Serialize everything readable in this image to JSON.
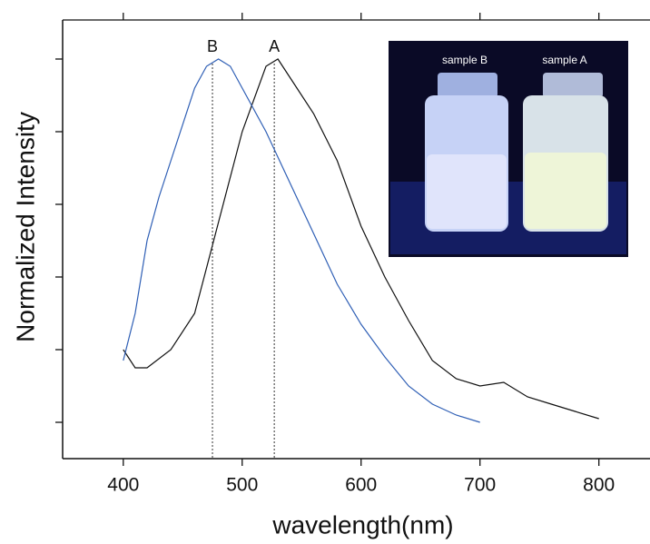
{
  "chart_data": {
    "type": "line",
    "xlabel": "wavelength(nm)",
    "ylabel": "Normalized Intensity",
    "xlim": [
      349,
      843
    ],
    "ylim": [
      -0.1,
      1.1
    ],
    "xticks": [
      400,
      500,
      600,
      700,
      800
    ],
    "yticks": [
      0,
      0.2,
      0.4,
      0.6,
      0.8,
      1.0
    ],
    "series": [
      {
        "name": "A",
        "color": "#111111",
        "x": [
          400,
          410,
          420,
          440,
          460,
          480,
          500,
          520,
          530,
          540,
          560,
          580,
          600,
          620,
          640,
          660,
          680,
          700,
          720,
          740,
          760,
          780,
          800
        ],
        "values": [
          0.2,
          0.15,
          0.15,
          0.2,
          0.3,
          0.55,
          0.8,
          0.98,
          1.0,
          0.95,
          0.85,
          0.72,
          0.54,
          0.4,
          0.28,
          0.17,
          0.12,
          0.1,
          0.11,
          0.07,
          0.05,
          0.03,
          0.01
        ]
      },
      {
        "name": "B",
        "color": "#2f5fb5",
        "x": [
          400,
          410,
          420,
          430,
          440,
          460,
          470,
          480,
          490,
          500,
          520,
          540,
          560,
          580,
          600,
          620,
          640,
          660,
          680,
          700
        ],
        "values": [
          0.17,
          0.3,
          0.5,
          0.62,
          0.72,
          0.92,
          0.98,
          1.0,
          0.98,
          0.92,
          0.8,
          0.66,
          0.52,
          0.38,
          0.27,
          0.18,
          0.1,
          0.05,
          0.02,
          0.0
        ]
      }
    ],
    "annotations": [
      {
        "text": "B",
        "x": 475
      },
      {
        "text": "A",
        "x": 527
      }
    ],
    "inset": {
      "labels": [
        "sample B",
        "sample A"
      ]
    }
  }
}
